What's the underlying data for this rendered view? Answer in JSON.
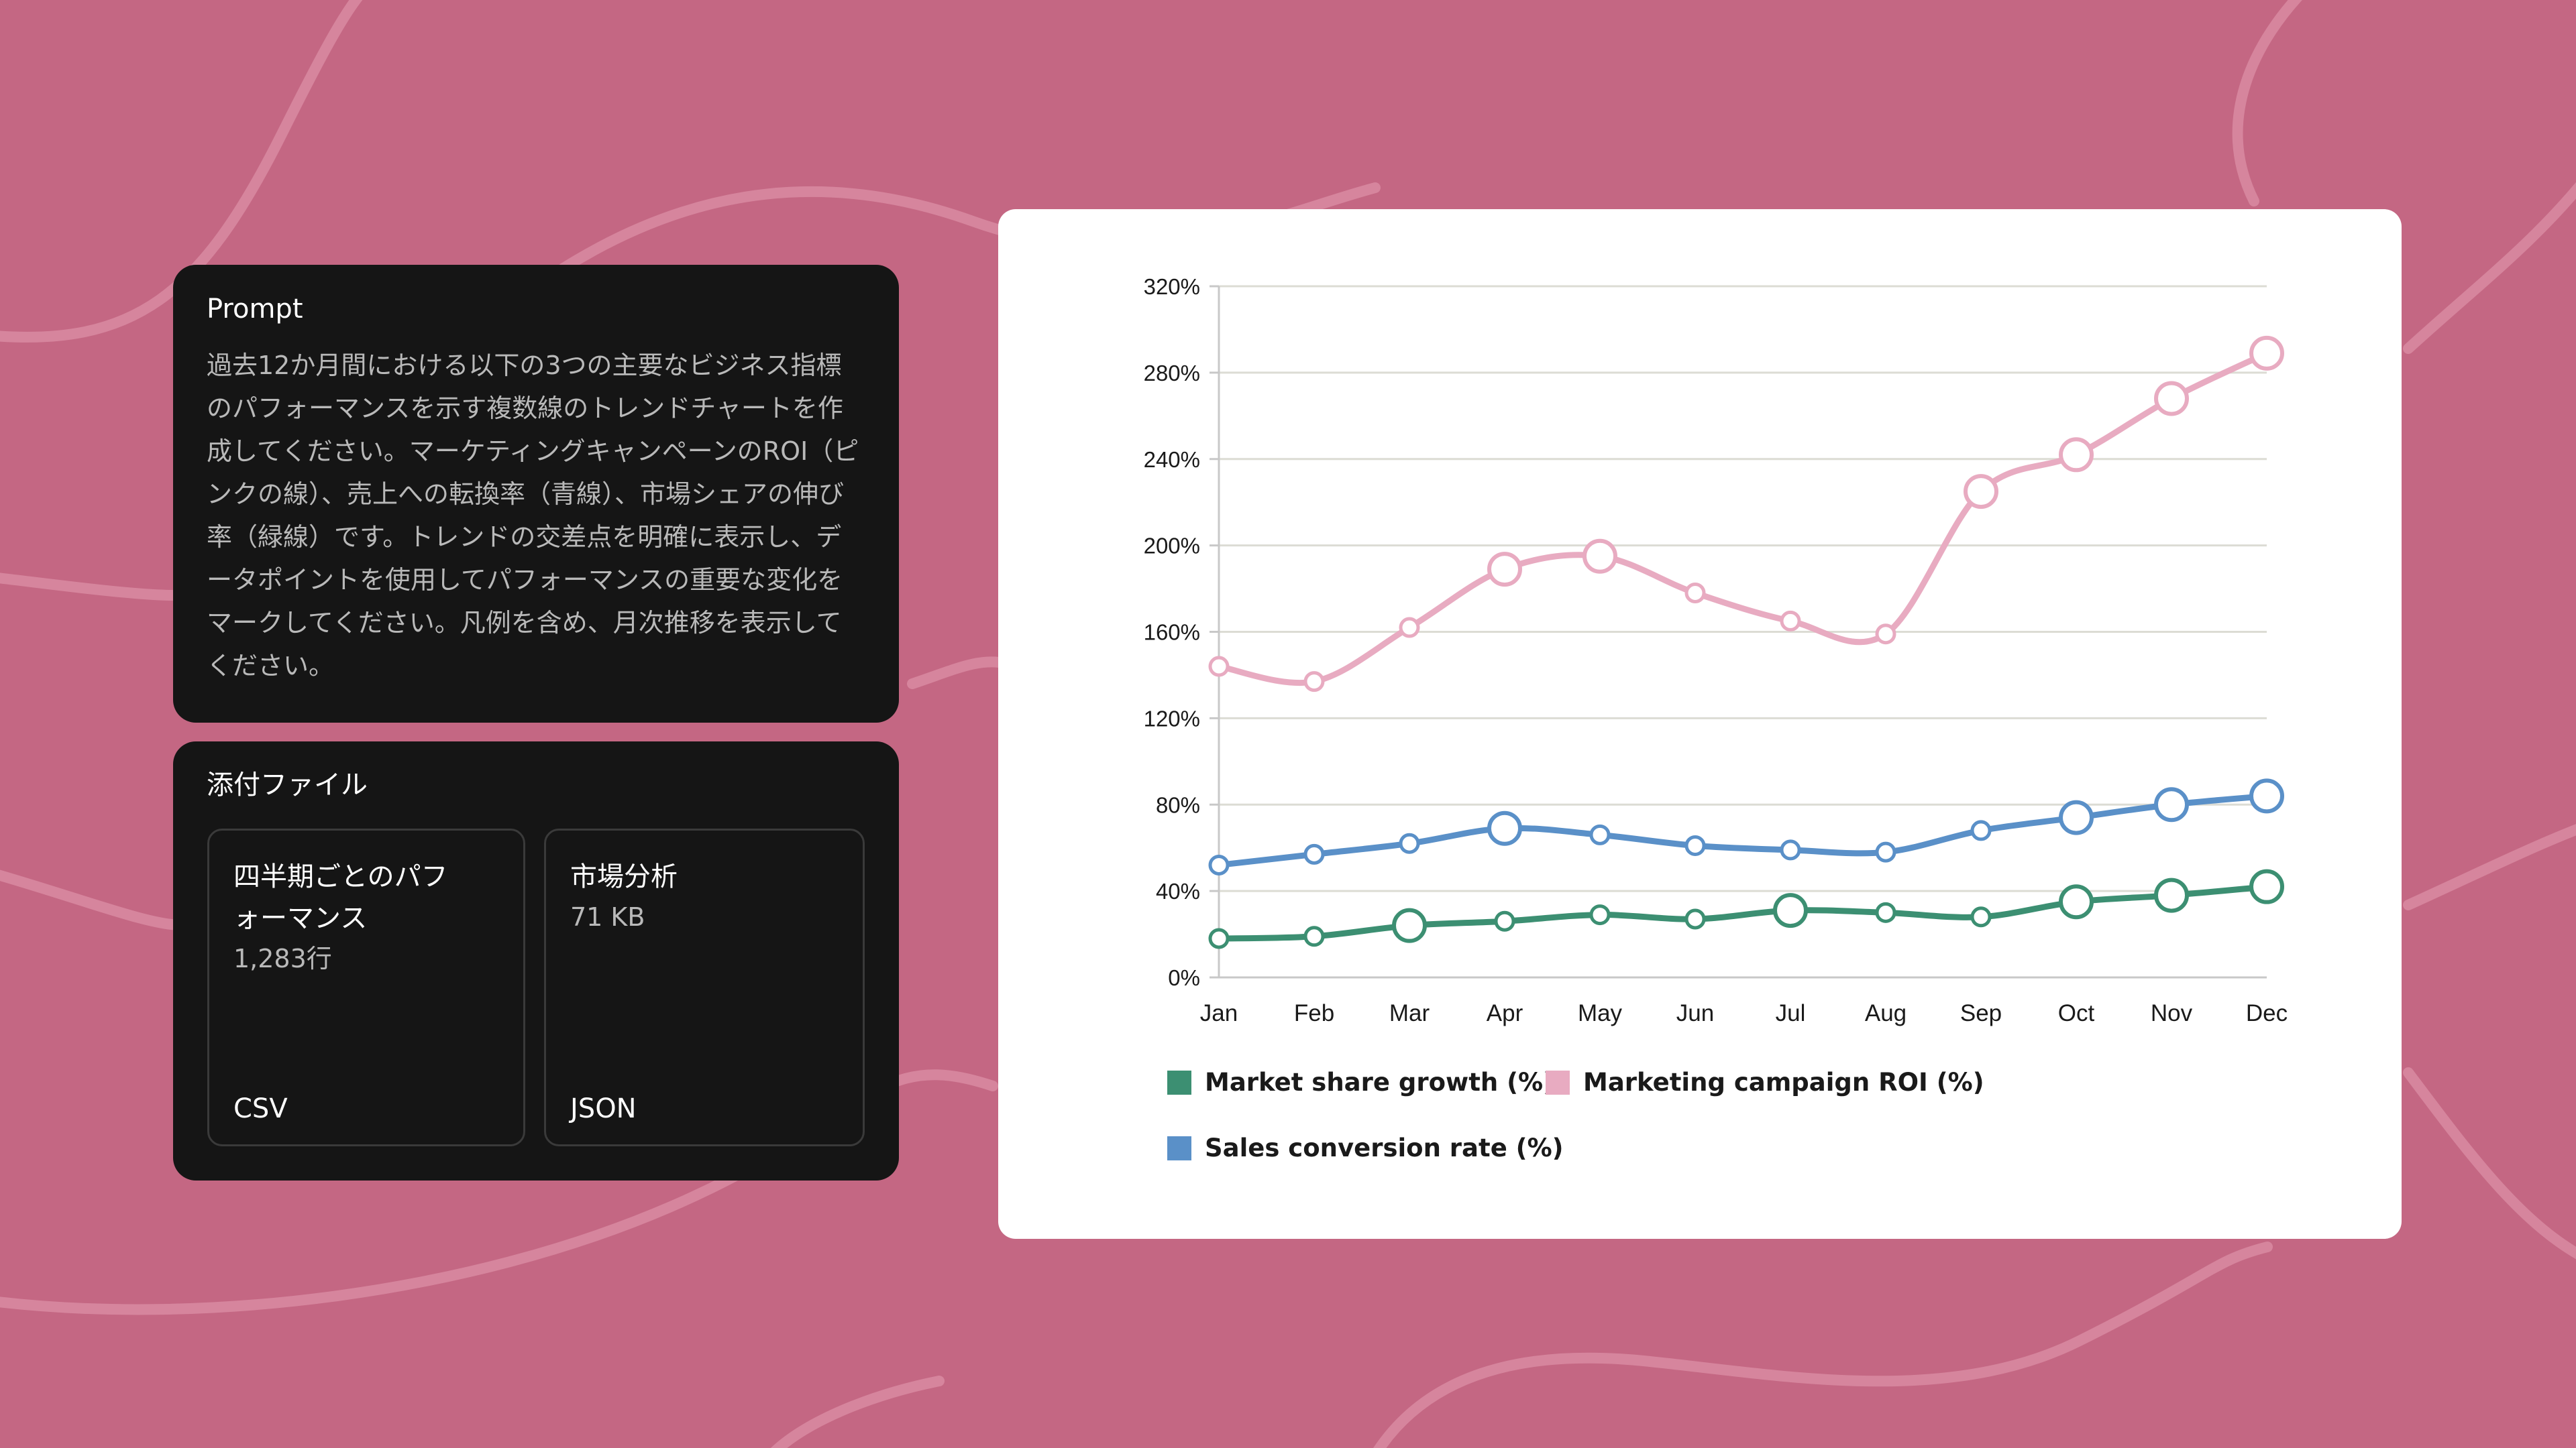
{
  "prompt": {
    "title": "Prompt",
    "text": "過去12か月間における以下の3つの主要なビジネス指標のパフォーマンスを示す複数線のトレンドチャートを作成してください。マーケティングキャンペーンのROI（ピンクの線）、売上への転換率（青線）、市場シェアの伸び率（緑線）です。トレンドの交差点を明確に表示し、データポイントを使用してパフォーマンスの重要な変化をマークしてください。凡例を含め、月次推移を表示してください。"
  },
  "attachments": {
    "title": "添付ファイル",
    "files": [
      {
        "name": "四半期ごとのパフォーマンス",
        "meta": "1,283行",
        "type": "CSV"
      },
      {
        "name": "市場分析",
        "meta": "71 KB",
        "type": "JSON"
      }
    ]
  },
  "colors": {
    "background": "#c46783",
    "pink": "#e8abc1",
    "blue": "#5a90c8",
    "green": "#3c8f72"
  },
  "chart_data": {
    "type": "line",
    "title": "",
    "xlabel": "",
    "ylabel": "",
    "categories": [
      "Jan",
      "Feb",
      "Mar",
      "Apr",
      "May",
      "Jun",
      "Jul",
      "Aug",
      "Sep",
      "Oct",
      "Nov",
      "Dec"
    ],
    "ylim": [
      0,
      320
    ],
    "yticks": [
      "0%",
      "40%",
      "80%",
      "120%",
      "160%",
      "200%",
      "240%",
      "280%",
      "320%"
    ],
    "series": [
      {
        "name": "Marketing campaign ROI (%)",
        "color": "#e8abc1",
        "values": [
          144,
          137,
          162,
          189,
          195,
          178,
          165,
          159,
          225,
          242,
          268,
          289
        ],
        "highlighted": [
          false,
          false,
          false,
          true,
          true,
          false,
          false,
          false,
          true,
          true,
          true,
          true
        ]
      },
      {
        "name": "Sales conversion rate (%)",
        "color": "#5a90c8",
        "values": [
          52,
          57,
          62,
          69,
          66,
          61,
          59,
          58,
          68,
          74,
          80,
          84
        ],
        "highlighted": [
          false,
          false,
          false,
          true,
          false,
          false,
          false,
          false,
          false,
          true,
          true,
          true
        ]
      },
      {
        "name": "Market share growth (%)",
        "color": "#3c8f72",
        "values": [
          18,
          19,
          24,
          26,
          29,
          27,
          31,
          30,
          28,
          35,
          38,
          42
        ],
        "highlighted": [
          false,
          false,
          true,
          false,
          false,
          false,
          true,
          false,
          false,
          true,
          true,
          true
        ]
      }
    ],
    "legend": [
      {
        "label": "Market share growth (%)",
        "color": "#3c8f72"
      },
      {
        "label": "Marketing campaign ROI (%)",
        "color": "#e8abc1"
      },
      {
        "label": "Sales conversion rate (%)",
        "color": "#5a90c8"
      }
    ],
    "legend_position": "bottom-left",
    "grid": true
  }
}
